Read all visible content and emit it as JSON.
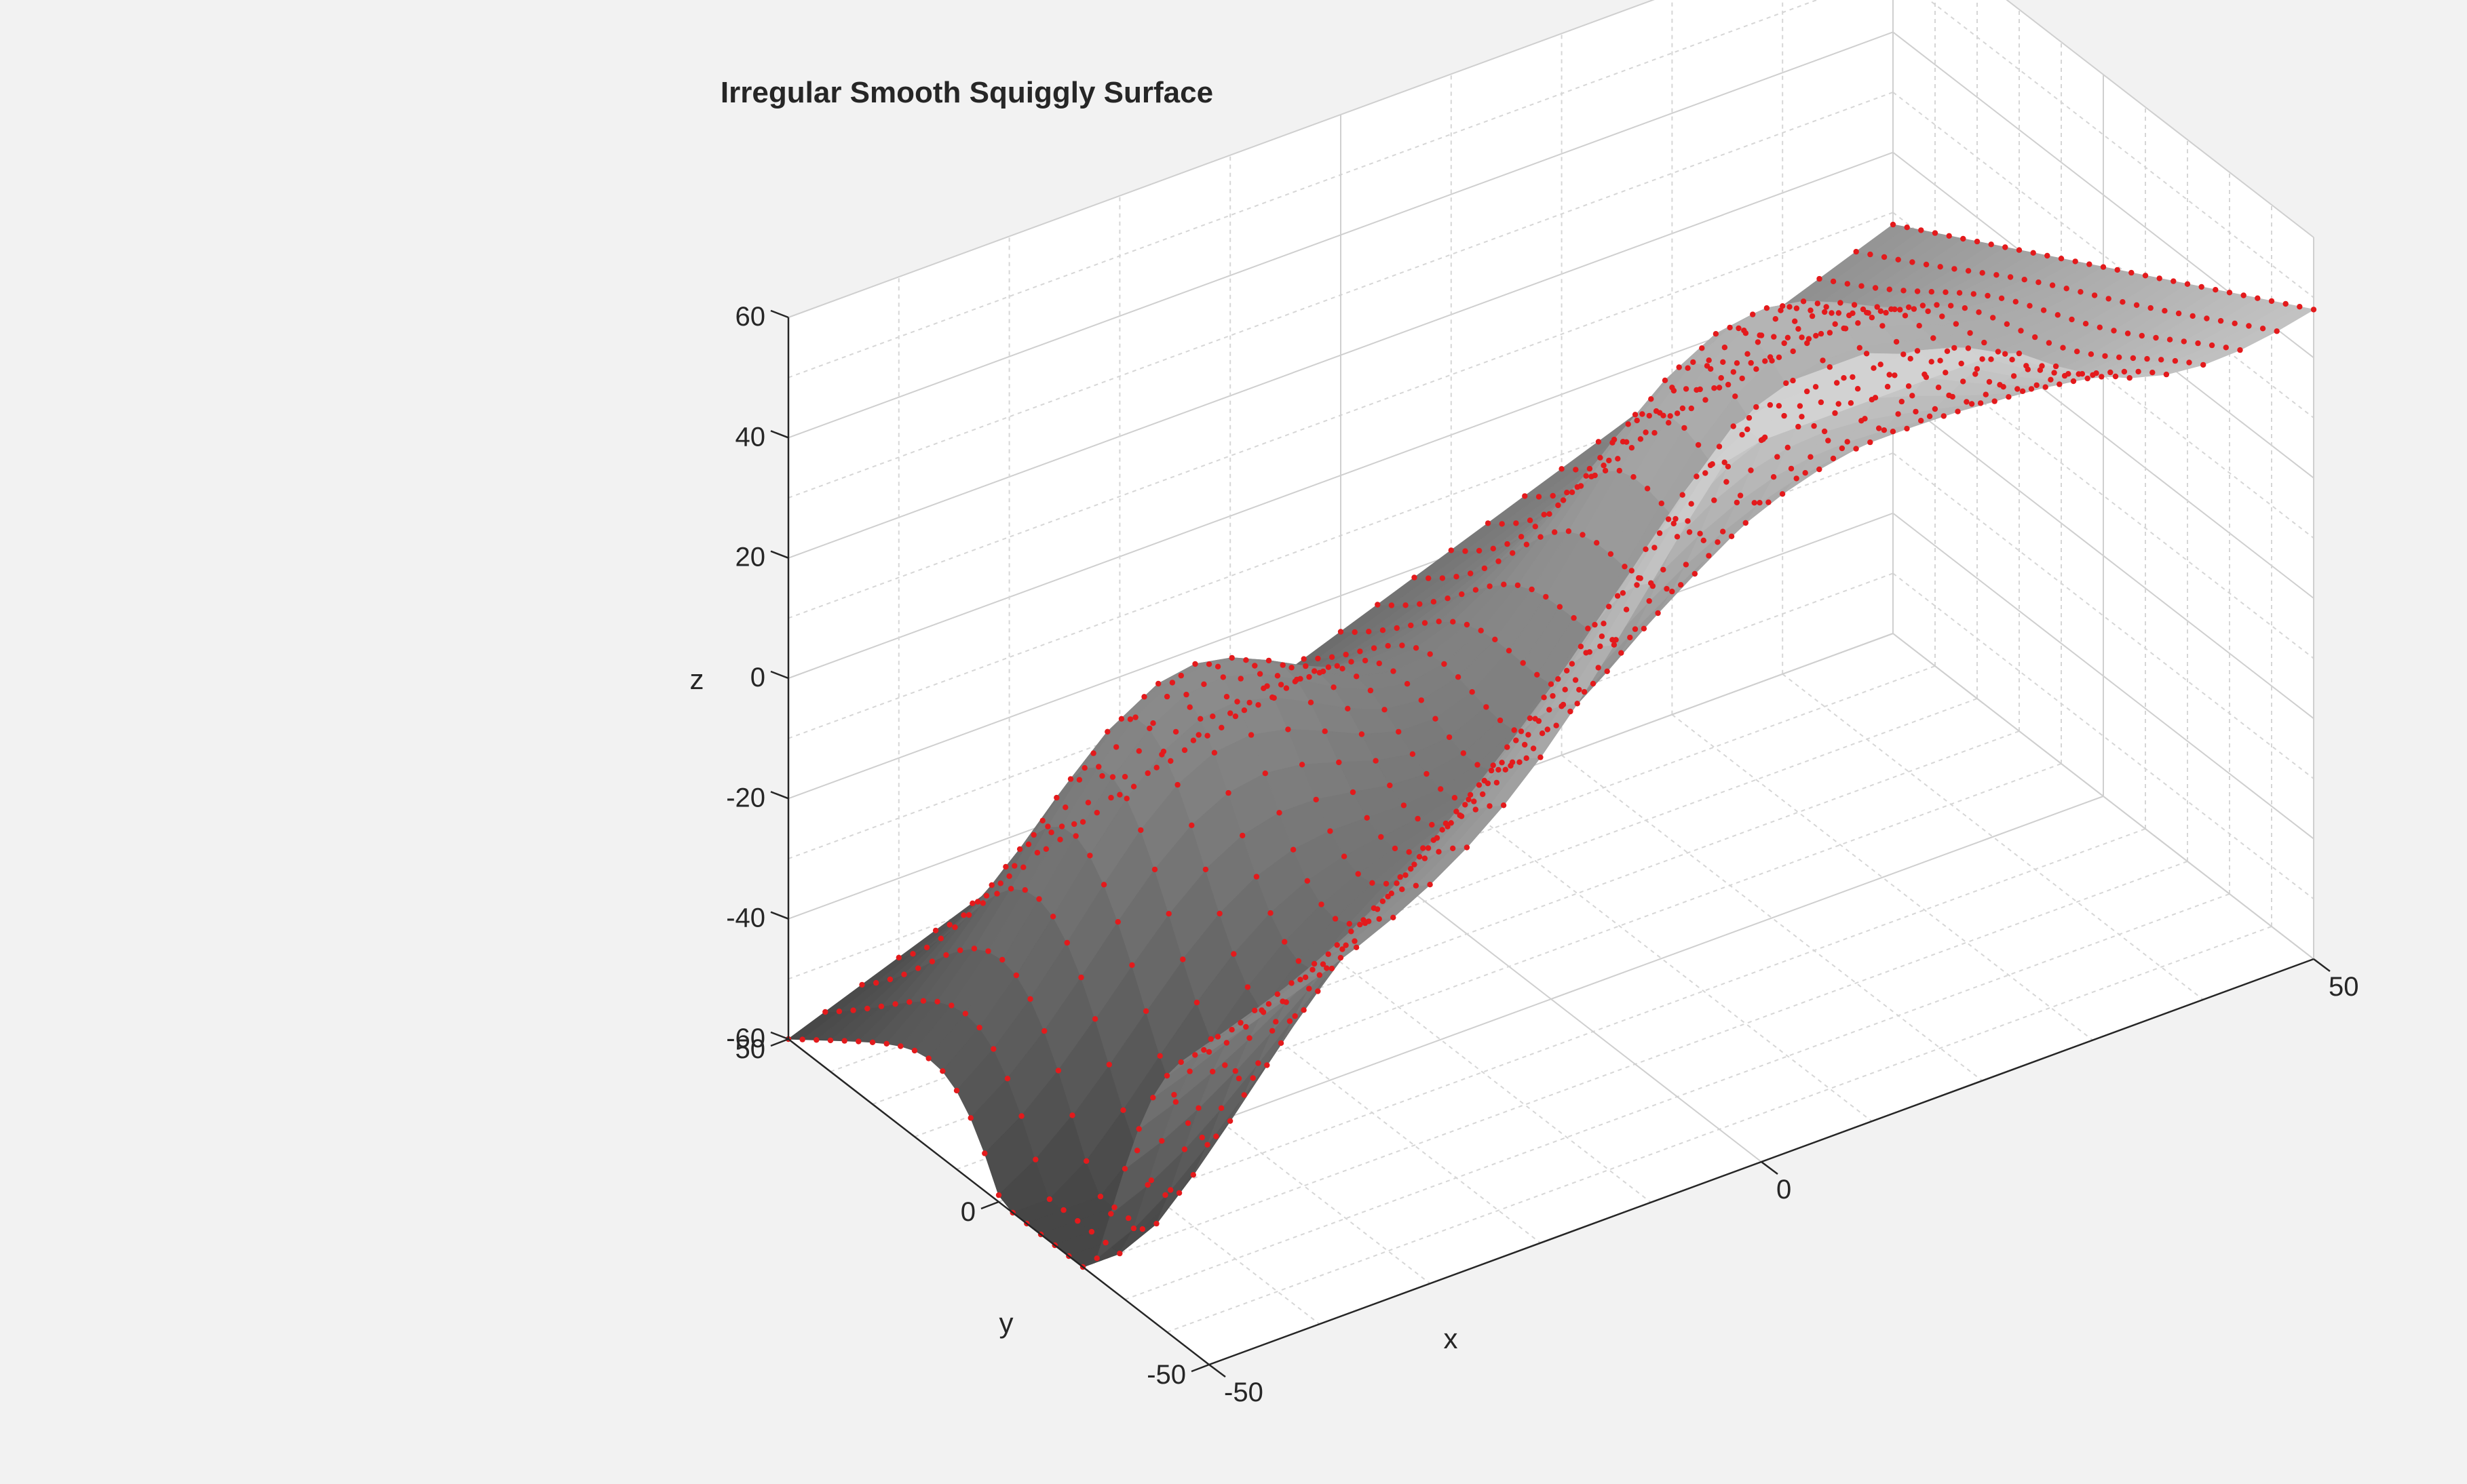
{
  "figure": {
    "background": "#f2f2f2",
    "plot_background": "#ffffff"
  },
  "chart_data": {
    "type": "surface",
    "title": "Irregular Smooth Squiggly Surface",
    "xlabel": "x",
    "ylabel": "y",
    "zlabel": "z",
    "xlim": [
      -50,
      50
    ],
    "ylim": [
      -50,
      50
    ],
    "zlim": [
      -60,
      60
    ],
    "xticks": [
      "-50",
      "0",
      "50"
    ],
    "yticks": [
      "-50",
      "0",
      "50"
    ],
    "zticks": [
      "-60",
      "-40",
      "-20",
      "0",
      "20",
      "40",
      "60"
    ],
    "grid": true,
    "colormap": "gray",
    "marker_color": "#e31a1c",
    "grid_points": 31,
    "corners": {
      "x-50_y50": -60,
      "x50_y-50": 48,
      "x50_y50": 8,
      "x-50_y-50": -8
    },
    "peak": {
      "x": 8,
      "y": -50,
      "z": 60
    },
    "valley": {
      "x": -50,
      "y": -17,
      "z": -60
    }
  }
}
